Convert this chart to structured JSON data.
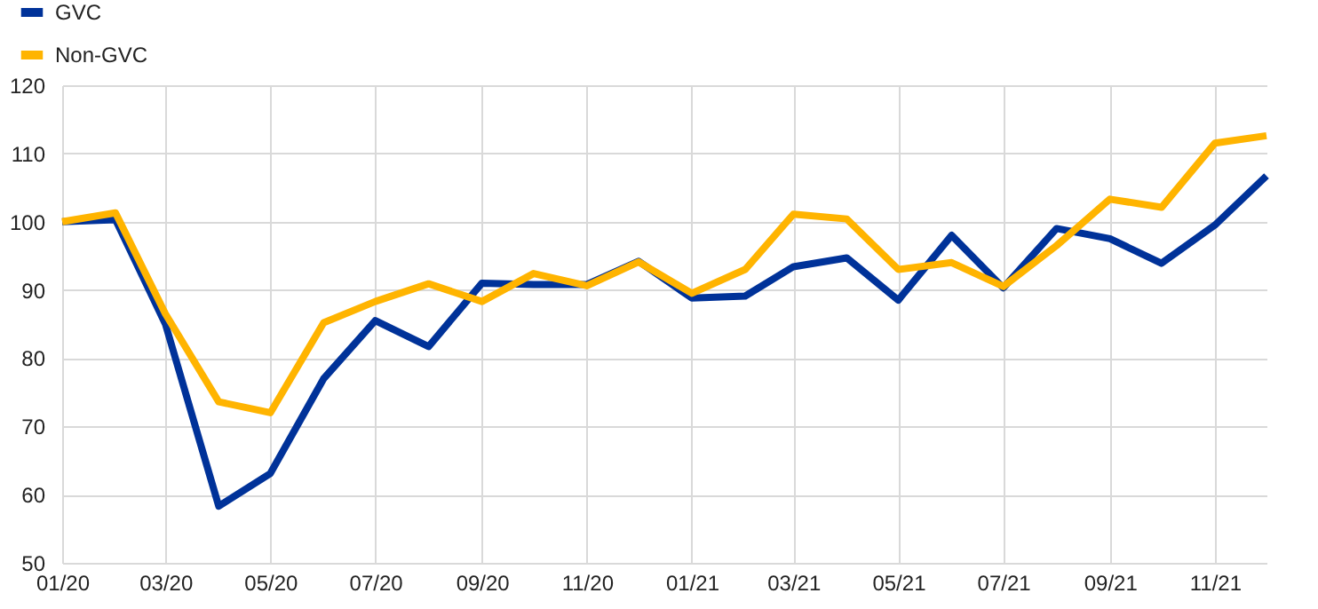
{
  "chart_data": {
    "type": "line",
    "x": [
      "2020-01",
      "2020-02",
      "2020-03",
      "2020-04",
      "2020-05",
      "2020-06",
      "2020-07",
      "2020-08",
      "2020-09",
      "2020-10",
      "2020-11",
      "2020-12",
      "2021-01",
      "2021-02",
      "2021-03",
      "2021-04",
      "2021-05",
      "2021-06",
      "2021-07",
      "2021-08",
      "2021-09",
      "2021-10",
      "2021-11",
      "2021-12"
    ],
    "series": [
      {
        "name": "GVC",
        "color": "#003299",
        "values": [
          100,
          100.3,
          85,
          58.3,
          63.1,
          77,
          85.5,
          81.7,
          91,
          90.8,
          90.8,
          94.2,
          88.8,
          89.1,
          93.4,
          94.7,
          88.5,
          98,
          90.3,
          99,
          97.5,
          93.9,
          99.5,
          106.7
        ]
      },
      {
        "name": "Non-GVC",
        "color": "#ffb400",
        "values": [
          100,
          101.3,
          86.5,
          73.6,
          72,
          85.2,
          88.3,
          90.9,
          88.3,
          92.4,
          90.6,
          94.1,
          89.5,
          93,
          101.1,
          100.4,
          93,
          94,
          90.5,
          96.5,
          103.3,
          102.1,
          111.5,
          112.6
        ]
      }
    ],
    "xlim": [
      "2020-01",
      "2021-12"
    ],
    "xticks": [
      {
        "value": "2020-01",
        "label": "01/20"
      },
      {
        "value": "2020-03",
        "label": "03/20"
      },
      {
        "value": "2020-05",
        "label": "05/20"
      },
      {
        "value": "2020-07",
        "label": "07/20"
      },
      {
        "value": "2020-09",
        "label": "09/20"
      },
      {
        "value": "2020-11",
        "label": "11/20"
      },
      {
        "value": "2021-01",
        "label": "01/21"
      },
      {
        "value": "2021-03",
        "label": "03/21"
      },
      {
        "value": "2021-05",
        "label": "05/21"
      },
      {
        "value": "2021-07",
        "label": "07/21"
      },
      {
        "value": "2021-09",
        "label": "09/21"
      },
      {
        "value": "2021-11",
        "label": "11/21"
      }
    ],
    "ylim": [
      50,
      120
    ],
    "yticks": [
      50,
      60,
      70,
      80,
      90,
      100,
      110,
      120
    ],
    "grid": true,
    "legend": "top left",
    "marker": "none",
    "line_style": "solid"
  }
}
